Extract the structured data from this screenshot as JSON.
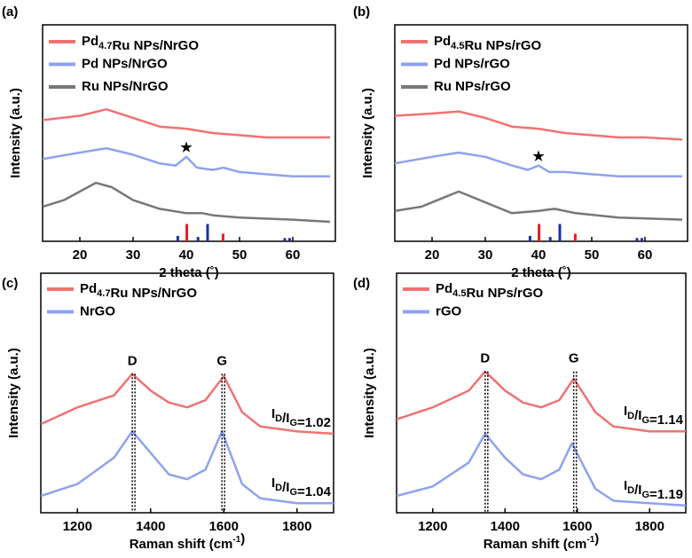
{
  "chart_data": [
    {
      "type": "line",
      "panel_label": "(a)",
      "xlabel": "2 theta (˚)",
      "ylabel": "Intensity (a.u.)",
      "xlim": [
        13,
        68
      ],
      "xticks": [
        20,
        30,
        40,
        50,
        60
      ],
      "ylim": [
        0,
        100
      ],
      "series": [
        {
          "name": [
            "Pd",
            {
              "sub": "4.7"
            },
            "Ru NPs/NrGO"
          ],
          "color": "#f07272",
          "x": [
            13,
            20,
            25,
            30,
            35,
            40,
            45,
            50,
            55,
            60,
            67
          ],
          "values": [
            56,
            58,
            61,
            57,
            53,
            52,
            50,
            49,
            48,
            48,
            48
          ]
        },
        {
          "name": "Pd NPs/NrGO",
          "color": "#8ea2f0",
          "x": [
            13,
            20,
            25,
            30,
            35,
            38,
            40,
            42,
            45,
            47,
            50,
            55,
            60,
            67
          ],
          "values": [
            38,
            41,
            43,
            40,
            36,
            35,
            39,
            34,
            33,
            34,
            32,
            31,
            30,
            30
          ]
        },
        {
          "name": "Ru NPs/NrGO",
          "color": "#777777",
          "x": [
            13,
            17,
            20,
            23,
            26,
            30,
            35,
            40,
            43,
            45,
            50,
            60,
            67
          ],
          "values": [
            16,
            19,
            23,
            27,
            25,
            19,
            15,
            13,
            13,
            12,
            11,
            10,
            9
          ]
        }
      ],
      "sticks": [
        {
          "color": "#1f2fa0",
          "x": [
            38.4,
            42.2,
            44.0,
            58.5,
            59.4
          ],
          "values": [
            2.5,
            2,
            8,
            1.5,
            1.5
          ]
        },
        {
          "color": "#e02020",
          "x": [
            40.1,
            46.9
          ],
          "values": [
            8,
            3.5
          ]
        }
      ],
      "annotations": [
        {
          "text": "★",
          "x": 40,
          "y": 43
        }
      ]
    },
    {
      "type": "line",
      "panel_label": "(b)",
      "xlabel": "2 theta (˚)",
      "ylabel": "Intensity (a.u.)",
      "xlim": [
        13,
        68
      ],
      "xticks": [
        20,
        30,
        40,
        50,
        60
      ],
      "ylim": [
        0,
        100
      ],
      "series": [
        {
          "name": [
            "Pd",
            {
              "sub": "4.5"
            },
            "Ru NPs/rGO"
          ],
          "color": "#f07272",
          "x": [
            13,
            20,
            25,
            30,
            35,
            40,
            45,
            50,
            55,
            60,
            67
          ],
          "values": [
            58,
            59,
            60,
            57,
            53,
            52,
            50,
            49,
            48,
            48,
            47
          ]
        },
        {
          "name": "Pd NPs/rGO",
          "color": "#8ea2f0",
          "x": [
            13,
            20,
            25,
            30,
            35,
            38,
            40,
            42,
            45,
            50,
            55,
            60,
            67
          ],
          "values": [
            36,
            39,
            41,
            39,
            35,
            33,
            35,
            32,
            32,
            31,
            30,
            30,
            30
          ]
        },
        {
          "name": "Ru NPs/rGO",
          "color": "#777777",
          "x": [
            13,
            18,
            22,
            25,
            28,
            32,
            35,
            40,
            43,
            47,
            55,
            67
          ],
          "values": [
            14,
            16,
            20,
            23,
            20,
            16,
            13,
            14,
            15,
            13,
            11,
            10
          ]
        }
      ],
      "sticks": [
        {
          "color": "#1f2fa0",
          "x": [
            38.4,
            42.2,
            44.0,
            58.5,
            59.4
          ],
          "values": [
            2.5,
            2,
            8,
            1.5,
            1.5
          ]
        },
        {
          "color": "#e02020",
          "x": [
            40.1,
            46.9
          ],
          "values": [
            8,
            3.5
          ]
        }
      ],
      "annotations": [
        {
          "text": "★",
          "x": 40,
          "y": 39
        }
      ]
    },
    {
      "type": "line",
      "panel_label": "(c)",
      "xlabel": [
        "Raman shift (cm",
        {
          "sup": "-1"
        },
        ")"
      ],
      "ylabel": "Intensity (a.u.)",
      "xlim": [
        1100,
        1900
      ],
      "xticks": [
        1200,
        1400,
        1600,
        1800
      ],
      "ylim": [
        0,
        100
      ],
      "series": [
        {
          "name": [
            "Pd",
            {
              "sub": "4.7"
            },
            "Ru NPs/NrGO"
          ],
          "color": "#f07272",
          "x": [
            1100,
            1200,
            1300,
            1350,
            1400,
            1450,
            1500,
            1550,
            1600,
            1650,
            1700,
            1800,
            1900
          ],
          "values": [
            37,
            44,
            49,
            58,
            51,
            46,
            44,
            47,
            57,
            42,
            36,
            34,
            33
          ],
          "ratio_label": [
            "I",
            {
              "sub": "D"
            },
            "/I",
            {
              "sub": "G"
            },
            "=1.02"
          ]
        },
        {
          "name": "NrGO",
          "color": "#8ea2f0",
          "x": [
            1100,
            1200,
            1300,
            1350,
            1400,
            1450,
            1500,
            1550,
            1595,
            1650,
            1700,
            1800,
            1900
          ],
          "values": [
            7,
            12,
            23,
            34,
            25,
            16,
            14,
            18,
            34,
            12,
            6,
            4,
            4
          ],
          "ratio_label": [
            "I",
            {
              "sub": "D"
            },
            "/I",
            {
              "sub": "G"
            },
            "=1.04"
          ]
        }
      ],
      "peaks": [
        {
          "label": "D",
          "x": 1350
        },
        {
          "label": "G",
          "x": 1595
        }
      ]
    },
    {
      "type": "line",
      "panel_label": "(d)",
      "xlabel": [
        "Raman shift (cm",
        {
          "sup": "-1"
        },
        ")"
      ],
      "ylabel": "Intensity (a.u.)",
      "xlim": [
        1100,
        1900
      ],
      "xticks": [
        1200,
        1400,
        1600,
        1800
      ],
      "ylim": [
        0,
        100
      ],
      "series": [
        {
          "name": [
            "Pd",
            {
              "sub": "4.5"
            },
            "Ru NPs/rGO"
          ],
          "color": "#f07272",
          "x": [
            1100,
            1200,
            1300,
            1345,
            1400,
            1450,
            1500,
            1550,
            1590,
            1650,
            1700,
            1800,
            1900
          ],
          "values": [
            39,
            44,
            51,
            59,
            51,
            46,
            44,
            47,
            56,
            42,
            36,
            34,
            34
          ],
          "ratio_label": [
            "I",
            {
              "sub": "D"
            },
            "/I",
            {
              "sub": "G"
            },
            "=1.14"
          ]
        },
        {
          "name": "rGO",
          "color": "#8ea2f0",
          "x": [
            1100,
            1200,
            1300,
            1345,
            1400,
            1450,
            1500,
            1550,
            1585,
            1650,
            1700,
            1800,
            1900
          ],
          "values": [
            7,
            11,
            21,
            33,
            23,
            16,
            14,
            18,
            29,
            10,
            5,
            4,
            3
          ],
          "ratio_label": [
            "I",
            {
              "sub": "D"
            },
            "/I",
            {
              "sub": "G"
            },
            "=1.19"
          ]
        }
      ],
      "peaks": [
        {
          "label": "D",
          "x": 1345
        },
        {
          "label": "G",
          "x": 1590
        }
      ]
    }
  ]
}
